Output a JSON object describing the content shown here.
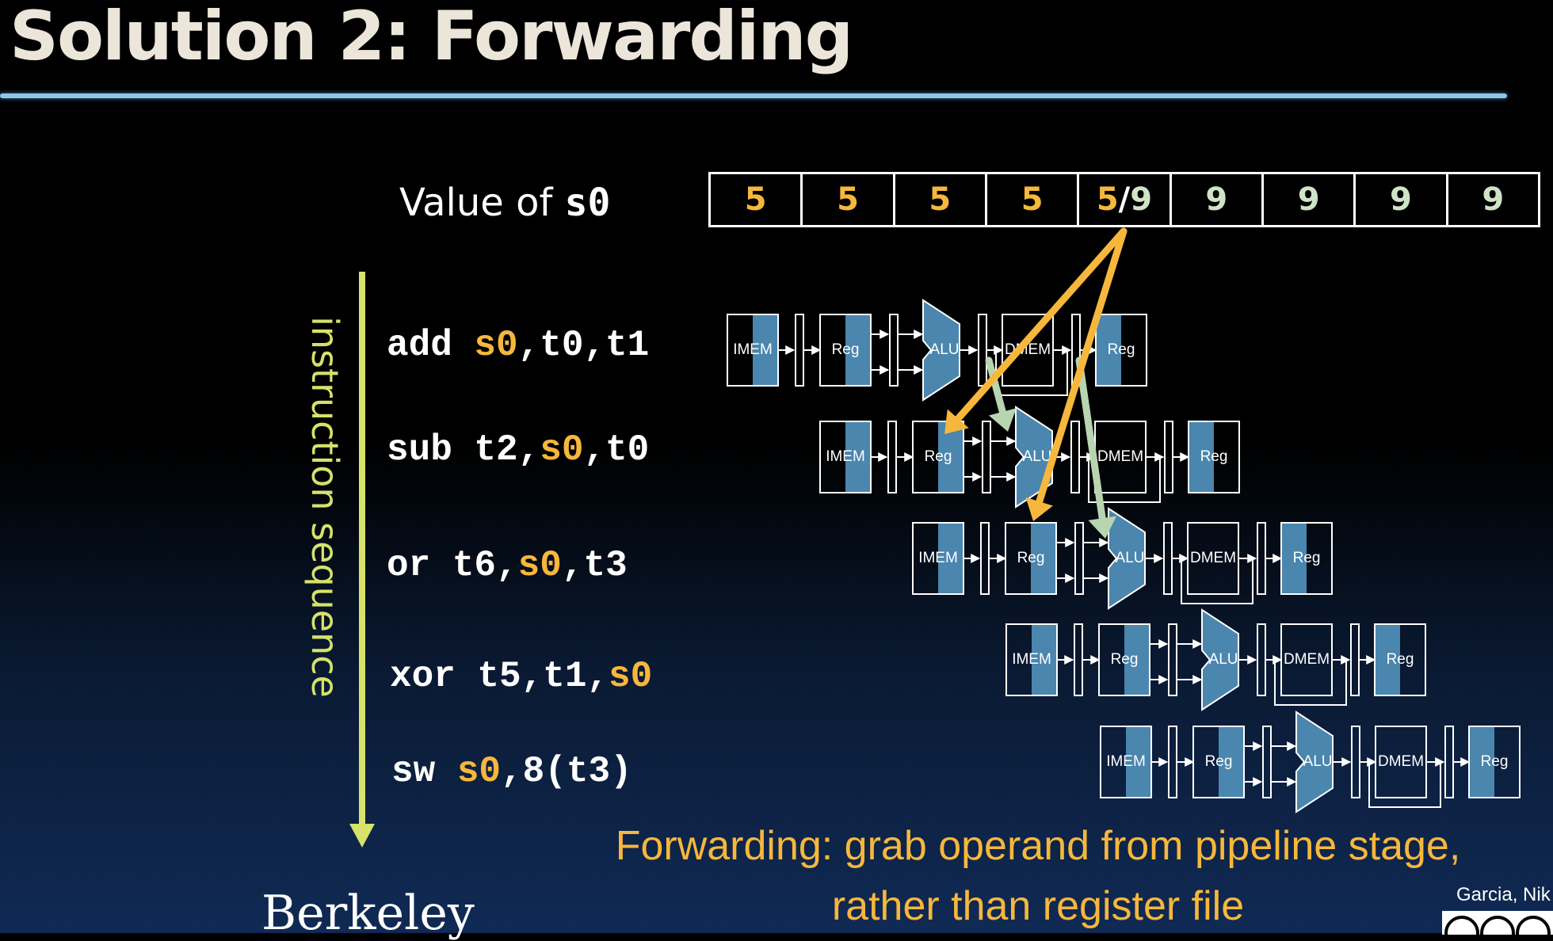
{
  "title": "Solution 2: Forwarding",
  "value_label": {
    "prefix": "Value of ",
    "reg": "s0"
  },
  "values": [
    {
      "old": "5"
    },
    {
      "old": "5"
    },
    {
      "old": "5"
    },
    {
      "old": "5"
    },
    {
      "old": "5",
      "sep": "/",
      "new": "9"
    },
    {
      "new": "9"
    },
    {
      "new": "9"
    },
    {
      "new": "9"
    },
    {
      "new": "9"
    }
  ],
  "sequence_label": "instruction sequence",
  "instructions": [
    {
      "pre": "add ",
      "hl1": "s0",
      "mid": ",t0,t1",
      "hl2": "",
      "post": ""
    },
    {
      "pre": "sub t2,",
      "hl1": "s0",
      "mid": ",t0",
      "hl2": "",
      "post": ""
    },
    {
      "pre": "or t6,",
      "hl1": "s0",
      "mid": ",t3",
      "hl2": "",
      "post": ""
    },
    {
      "pre": "xor t5,t1,",
      "hl1": "s0",
      "mid": "",
      "hl2": "",
      "post": ""
    },
    {
      "pre": "sw ",
      "hl1": "s0",
      "mid": ",8(t3)",
      "hl2": "",
      "post": ""
    }
  ],
  "stage_labels": {
    "imem": "IMEM",
    "reg": "Reg",
    "alu": "ALU",
    "dmem": "DMEM",
    "wb": "Reg"
  },
  "footer_line1": "Forwarding: grab operand from pipeline stage,",
  "footer_line2": "rather than register file",
  "logo_text": "Berkeley",
  "credit": "Garcia, Nik",
  "colors": {
    "accent": "#f6b73c",
    "stage_blue": "#4a86ae",
    "green_arrow": "#b8d4b0",
    "title": "#ece6da"
  }
}
